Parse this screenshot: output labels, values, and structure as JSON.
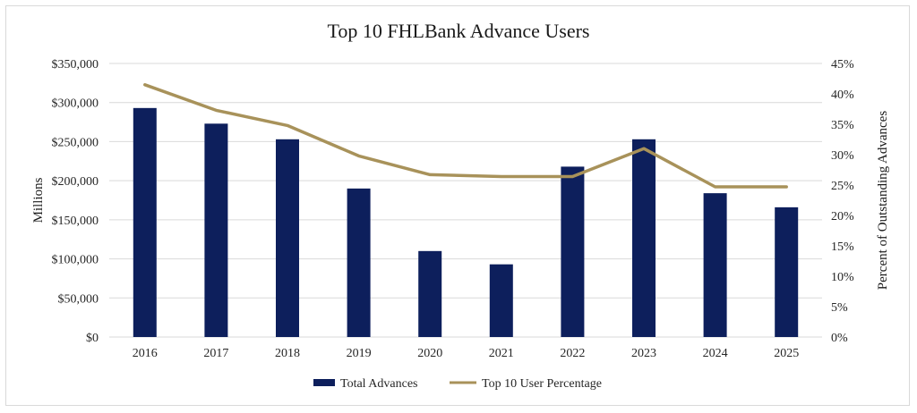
{
  "chart_data": {
    "type": "bar",
    "title": "Top 10 FHLBank Advance Users",
    "categories": [
      "2016",
      "2017",
      "2018",
      "2019",
      "2020",
      "2021",
      "2022",
      "2023",
      "2024",
      "2025"
    ],
    "series": [
      {
        "name": "Total Advances",
        "kind": "bar",
        "axis": "left",
        "color": "#0d1f5c",
        "values": [
          293000,
          273000,
          253000,
          190000,
          110000,
          93000,
          218000,
          253000,
          184000,
          166000
        ]
      },
      {
        "name": "Top 10 User Percentage",
        "kind": "line",
        "axis": "right",
        "color": "#a8925a",
        "values": [
          41.5,
          37.3,
          34.8,
          29.8,
          26.7,
          26.4,
          26.4,
          31.0,
          24.7,
          24.7
        ]
      }
    ],
    "ylabel": "Millions",
    "ylim": [
      0,
      350000
    ],
    "ytick_values": [
      0,
      50000,
      100000,
      150000,
      200000,
      250000,
      300000,
      350000
    ],
    "ytick_labels": [
      "$0",
      "$50,000",
      "$100,000",
      "$150,000",
      "$200,000",
      "$250,000",
      "$300,000",
      "$350,000"
    ],
    "y2label": "Percent of Outstanding Advances",
    "y2lim": [
      0,
      45
    ],
    "y2tick_values": [
      0,
      5,
      10,
      15,
      20,
      25,
      30,
      35,
      40,
      45
    ],
    "y2tick_labels": [
      "0%",
      "5%",
      "10%",
      "15%",
      "20%",
      "25%",
      "30%",
      "35%",
      "40%",
      "45%"
    ],
    "grid": true,
    "legend": "bottom-center"
  }
}
